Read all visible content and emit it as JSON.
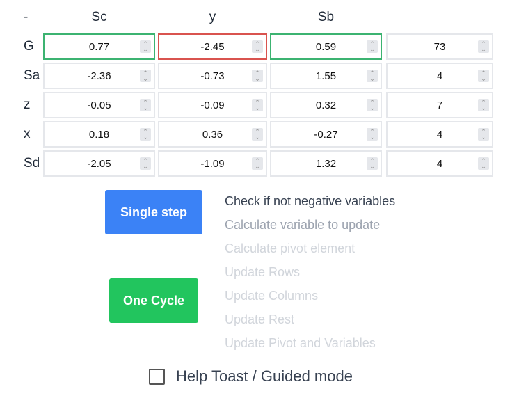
{
  "table": {
    "corner": "-",
    "columns": [
      "Sc",
      "y",
      "Sb",
      ""
    ],
    "rows": [
      {
        "label": "G",
        "values": [
          "0.77",
          "-2.45",
          "0.59",
          "73"
        ]
      },
      {
        "label": "Sa",
        "values": [
          "-2.36",
          "-0.73",
          "1.55",
          "4"
        ]
      },
      {
        "label": "z",
        "values": [
          "-0.05",
          "-0.09",
          "0.32",
          "7"
        ]
      },
      {
        "label": "x",
        "values": [
          "0.18",
          "0.36",
          "-0.27",
          "4"
        ]
      },
      {
        "label": "Sd",
        "values": [
          "-2.05",
          "-1.09",
          "1.32",
          "4"
        ]
      }
    ],
    "highlight": {
      "ok": "#3cb371",
      "bad": "#d9534f"
    }
  },
  "buttons": {
    "single_step": "Single step",
    "one_cycle": "One Cycle",
    "single_color": "#3b82f6",
    "cycle_color": "#22c55e"
  },
  "steps": [
    {
      "label": "Check if not negative variables",
      "state": "current"
    },
    {
      "label": "Calculate variable to update",
      "state": "next"
    },
    {
      "label": "Calculate pivot element",
      "state": "pending"
    },
    {
      "label": "Update Rows",
      "state": "pending"
    },
    {
      "label": "Update Columns",
      "state": "pending"
    },
    {
      "label": "Update Rest",
      "state": "pending"
    },
    {
      "label": "Update Pivot and Variables",
      "state": "pending"
    }
  ],
  "help": {
    "label": "Help Toast / Guided mode",
    "checked": false
  }
}
